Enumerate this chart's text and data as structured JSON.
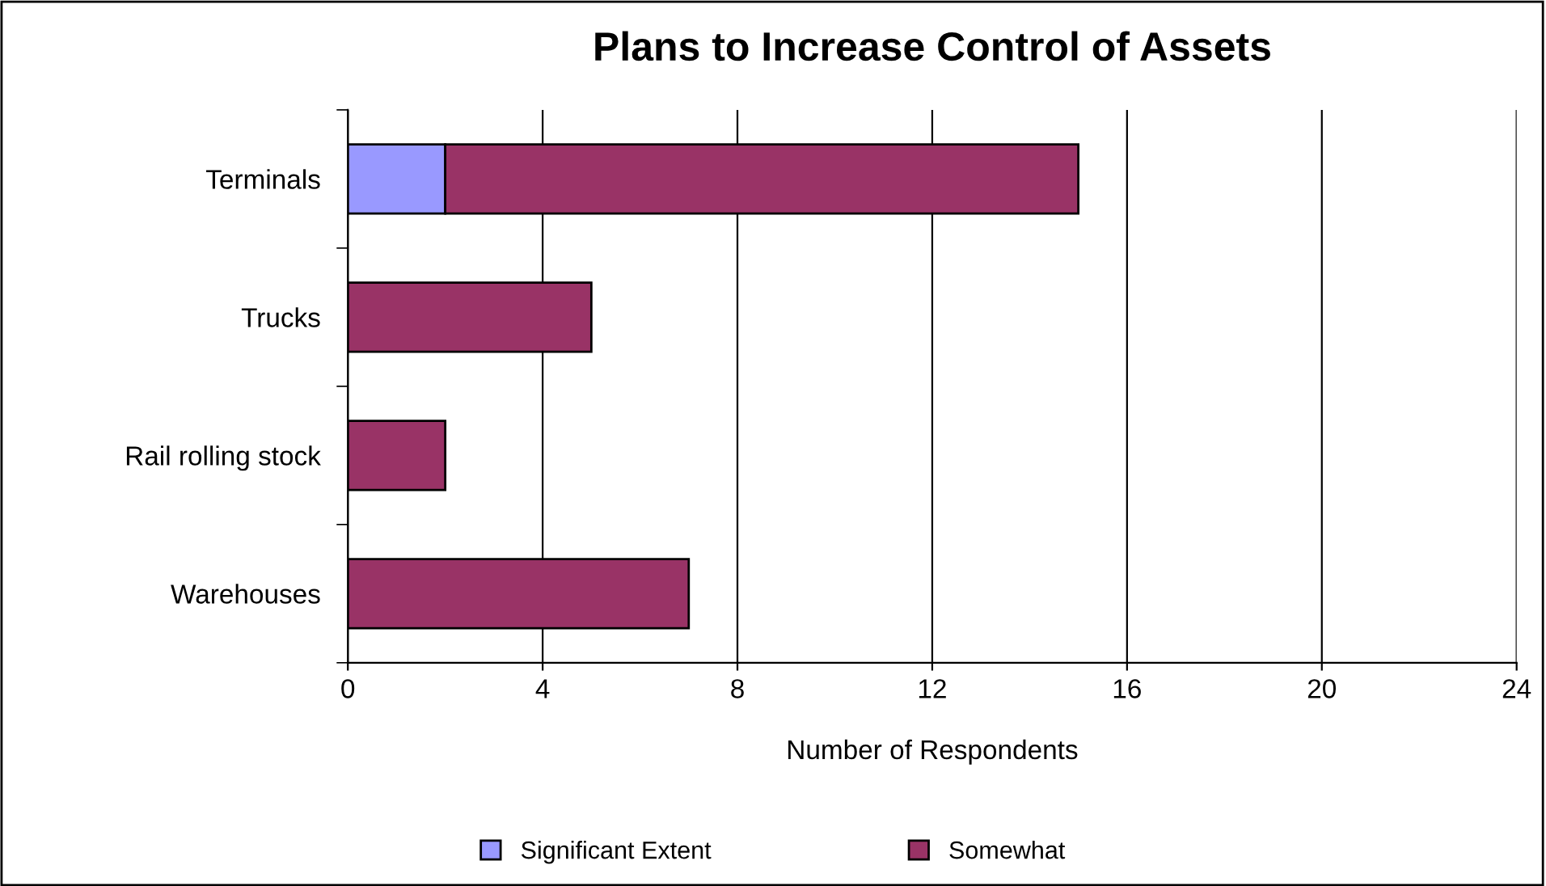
{
  "chart_data": {
    "type": "bar",
    "title": "Plans to Increase Control of Assets",
    "xlabel": "Number of Respondents",
    "orientation": "horizontal",
    "stacked": true,
    "categories": [
      "Terminals",
      "Trucks",
      "Rail rolling stock",
      "Warehouses"
    ],
    "series": [
      {
        "name": "Significant Extent",
        "color": "#9999ff",
        "values": [
          2,
          null,
          null,
          null
        ]
      },
      {
        "name": "Somewhat",
        "color": "#993366",
        "values": [
          13,
          5,
          2,
          7
        ]
      }
    ],
    "xlim": [
      0,
      24
    ],
    "xticks": [
      0,
      4,
      8,
      12,
      16,
      20,
      24
    ],
    "grid": "x",
    "legend": "bottom"
  }
}
